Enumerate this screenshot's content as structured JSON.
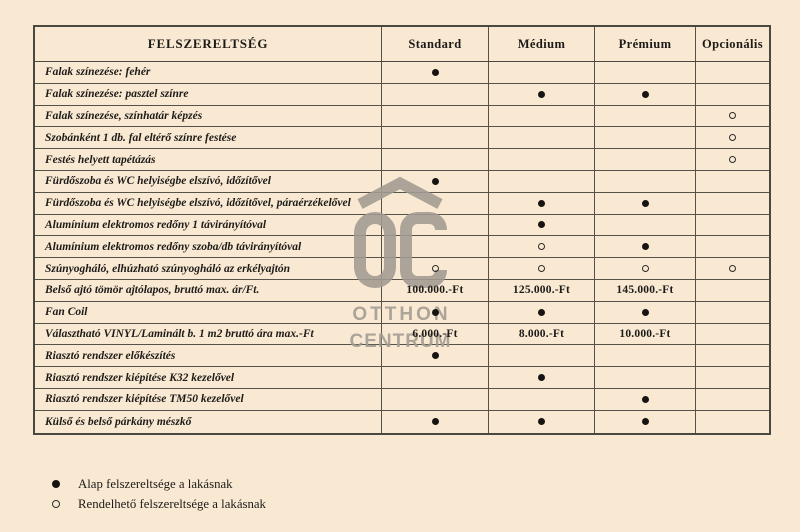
{
  "table": {
    "header": {
      "feature": "FELSZERELTSÉG",
      "columns": [
        "Standard",
        "Médium",
        "Prémium",
        "Opcionális"
      ]
    },
    "rows": [
      {
        "label": "Falak színezése: fehér",
        "cells": [
          "filled",
          "",
          "",
          ""
        ]
      },
      {
        "label": "Falak színezése: pasztel színre",
        "cells": [
          "",
          "filled",
          "filled",
          ""
        ]
      },
      {
        "label": "Falak színezése, színhatár képzés",
        "cells": [
          "",
          "",
          "",
          "open"
        ]
      },
      {
        "label": "Szobánként 1 db. fal eltérő színre festése",
        "cells": [
          "",
          "",
          "",
          "open"
        ]
      },
      {
        "label": "Festés helyett tapétázás",
        "cells": [
          "",
          "",
          "",
          "open"
        ]
      },
      {
        "label": "Fürdőszoba és WC helyiségbe elszívó, időzítővel",
        "cells": [
          "filled",
          "",
          "",
          ""
        ]
      },
      {
        "label": "Fürdőszoba és WC helyiségbe elszívó, időzítővel, páraérzékelővel",
        "cells": [
          "",
          "filled",
          "filled",
          ""
        ]
      },
      {
        "label": "Alumínium elektromos redőny 1 távirányítóval",
        "cells": [
          "",
          "filled",
          "",
          ""
        ]
      },
      {
        "label": "Alumínium elektromos redőny szoba/db távirányítóval",
        "cells": [
          "",
          "open",
          "filled",
          ""
        ]
      },
      {
        "label": "Szúnyogháló, elhúzható szúnyogháló az erkélyajtón",
        "cells": [
          "open",
          "open",
          "open",
          "open"
        ]
      },
      {
        "label": "Belső ajtó tömör ajtólapos, bruttó max. ár/Ft.",
        "cells": [
          "100.000.-Ft",
          "125.000.-Ft",
          "145.000.-Ft",
          ""
        ]
      },
      {
        "label": "Fan Coil",
        "cells": [
          "filled",
          "filled",
          "filled",
          ""
        ]
      },
      {
        "label": "Választható VINYL/Laminált b. 1 m2 bruttó ára max.-Ft",
        "cells": [
          "6.000.-Ft",
          "8.000.-Ft",
          "10.000.-Ft",
          ""
        ]
      },
      {
        "label": "Riasztó rendszer előkészítés",
        "cells": [
          "filled",
          "",
          "",
          ""
        ]
      },
      {
        "label": "Riasztó rendszer kiépítése K32 kezelővel",
        "cells": [
          "",
          "filled",
          "",
          ""
        ]
      },
      {
        "label": "Riasztó rendszer kiépítése TM50 kezelővel",
        "cells": [
          "",
          "",
          "filled",
          ""
        ]
      },
      {
        "label": "Külső és belső párkány mészkő",
        "cells": [
          "filled",
          "filled",
          "filled",
          ""
        ]
      }
    ]
  },
  "legend": {
    "items": [
      {
        "marker": "filled",
        "text": "Alap felszereltsége a lakásnak"
      },
      {
        "marker": "open",
        "text": "Rendelhető felszereltsége a lakásnak"
      }
    ]
  },
  "watermark": {
    "monogram": "OC",
    "line1": "OTTHON",
    "line2": "CENTRUM"
  },
  "colors": {
    "background": "#f9e9d3",
    "border": "#55524a",
    "text": "#1d1b18",
    "watermark": "#a29b92",
    "marker": "#161410"
  }
}
